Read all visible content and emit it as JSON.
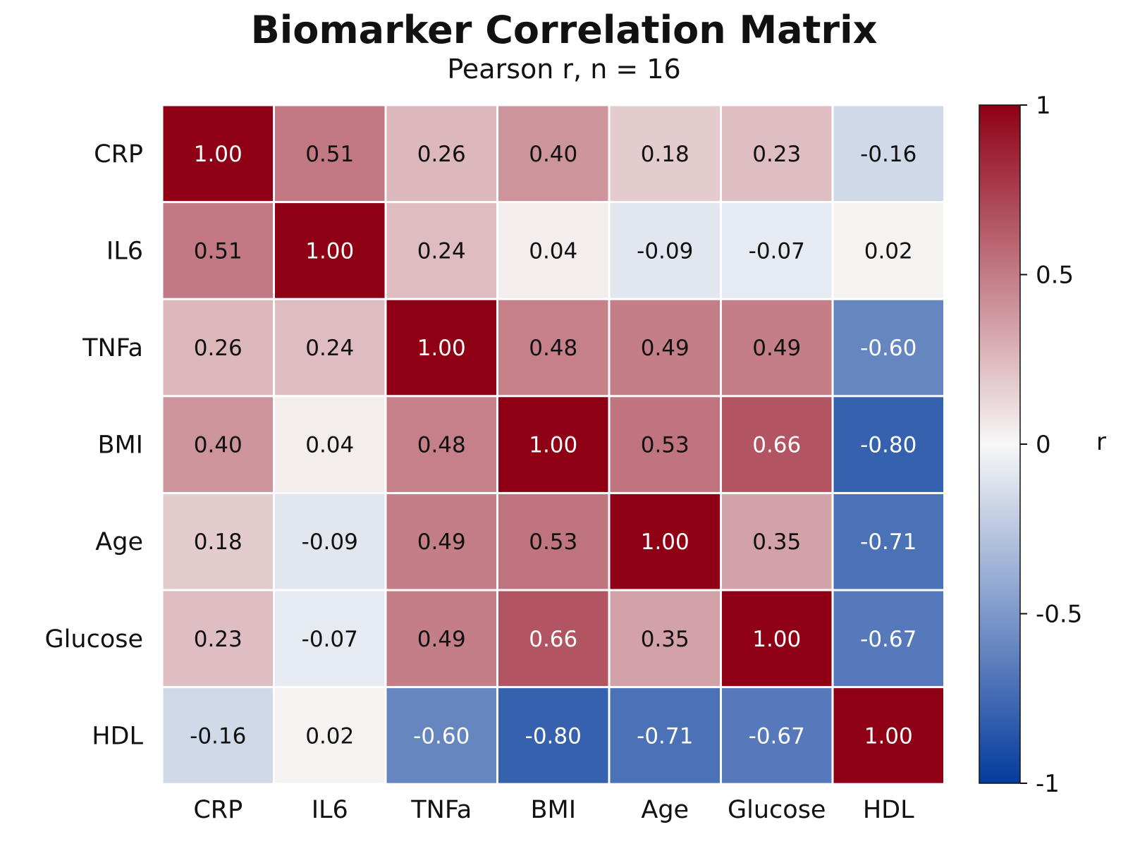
{
  "chart_data": {
    "type": "heatmap",
    "title": "Biomarker Correlation Matrix",
    "subtitle": "Pearson r, n = 16",
    "rows": [
      "CRP",
      "IL6",
      "TNFa",
      "BMI",
      "Age",
      "Glucose",
      "HDL"
    ],
    "columns": [
      "CRP",
      "IL6",
      "TNFa",
      "BMI",
      "Age",
      "Glucose",
      "HDL"
    ],
    "values": [
      [
        1.0,
        0.51,
        0.26,
        0.4,
        0.18,
        0.23,
        -0.16
      ],
      [
        0.51,
        1.0,
        0.24,
        0.04,
        -0.09,
        -0.07,
        0.02
      ],
      [
        0.26,
        0.24,
        1.0,
        0.48,
        0.49,
        0.49,
        -0.6
      ],
      [
        0.4,
        0.04,
        0.48,
        1.0,
        0.53,
        0.66,
        -0.8
      ],
      [
        0.18,
        -0.09,
        0.49,
        0.53,
        1.0,
        0.35,
        -0.71
      ],
      [
        0.23,
        -0.07,
        0.49,
        0.66,
        0.35,
        1.0,
        -0.67
      ],
      [
        -0.16,
        0.02,
        -0.6,
        -0.8,
        -0.71,
        -0.67,
        1.0
      ]
    ],
    "cell_labels": [
      [
        "1.00",
        "0.51",
        "0.26",
        "0.40",
        "0.18",
        "0.23",
        "-0.16"
      ],
      [
        "0.51",
        "1.00",
        "0.24",
        "0.04",
        "-0.09",
        "-0.07",
        "0.02"
      ],
      [
        "0.26",
        "0.24",
        "1.00",
        "0.48",
        "0.49",
        "0.49",
        "-0.60"
      ],
      [
        "0.40",
        "0.04",
        "0.48",
        "1.00",
        "0.53",
        "0.66",
        "-0.80"
      ],
      [
        "0.18",
        "-0.09",
        "0.49",
        "0.53",
        "1.00",
        "0.35",
        "-0.71"
      ],
      [
        "0.23",
        "-0.07",
        "0.49",
        "0.66",
        "0.35",
        "1.00",
        "-0.67"
      ],
      [
        "-0.16",
        "0.02",
        "-0.60",
        "-0.80",
        "-0.71",
        "-0.67",
        "1.00"
      ]
    ],
    "colorbar": {
      "label": "r",
      "range": [
        -1,
        1
      ],
      "ticks": [
        1,
        0.5,
        0,
        -0.5,
        -1
      ],
      "tick_labels": [
        "1",
        "0.5",
        "0",
        "-0.5",
        "-1"
      ],
      "colormap": "coolwarm",
      "colors": {
        "min": "#053b9c",
        "mid": "#f7f7f7",
        "max": "#8f0014"
      }
    },
    "grid": false,
    "legend": "right"
  }
}
